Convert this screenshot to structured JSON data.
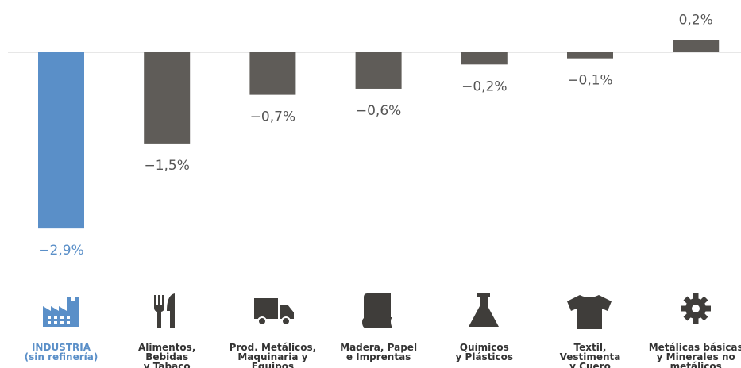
{
  "chart_data": {
    "type": "bar",
    "categories": [
      [
        "INDUSTRIA",
        "(sin refinería)"
      ],
      [
        "Alimentos,",
        "Bebidas",
        "y Tabaco"
      ],
      [
        "Prod. Metálicos,",
        "Maquinaria y",
        "Equipos"
      ],
      [
        "Madera, Papel",
        "e Imprentas"
      ],
      [
        "Químicos",
        "y Plásticos"
      ],
      [
        "Textil,",
        "Vestimenta",
        "y Cuero"
      ],
      [
        "Metálicas básicas",
        "y Minerales no",
        "metálicos"
      ]
    ],
    "values": [
      -2.9,
      -1.5,
      -0.7,
      -0.6,
      -0.2,
      -0.1,
      0.2
    ],
    "value_labels": [
      "−2,9%",
      "−1,5%",
      "−0,7%",
      "−0,6%",
      "−0,2%",
      "−0,1%",
      "0,2%"
    ],
    "colors": [
      "#5a8fc8",
      "#5f5c58",
      "#5f5c58",
      "#5f5c58",
      "#5f5c58",
      "#5f5c58",
      "#5f5c58"
    ],
    "ylim": [
      -3,
      0.5
    ]
  }
}
